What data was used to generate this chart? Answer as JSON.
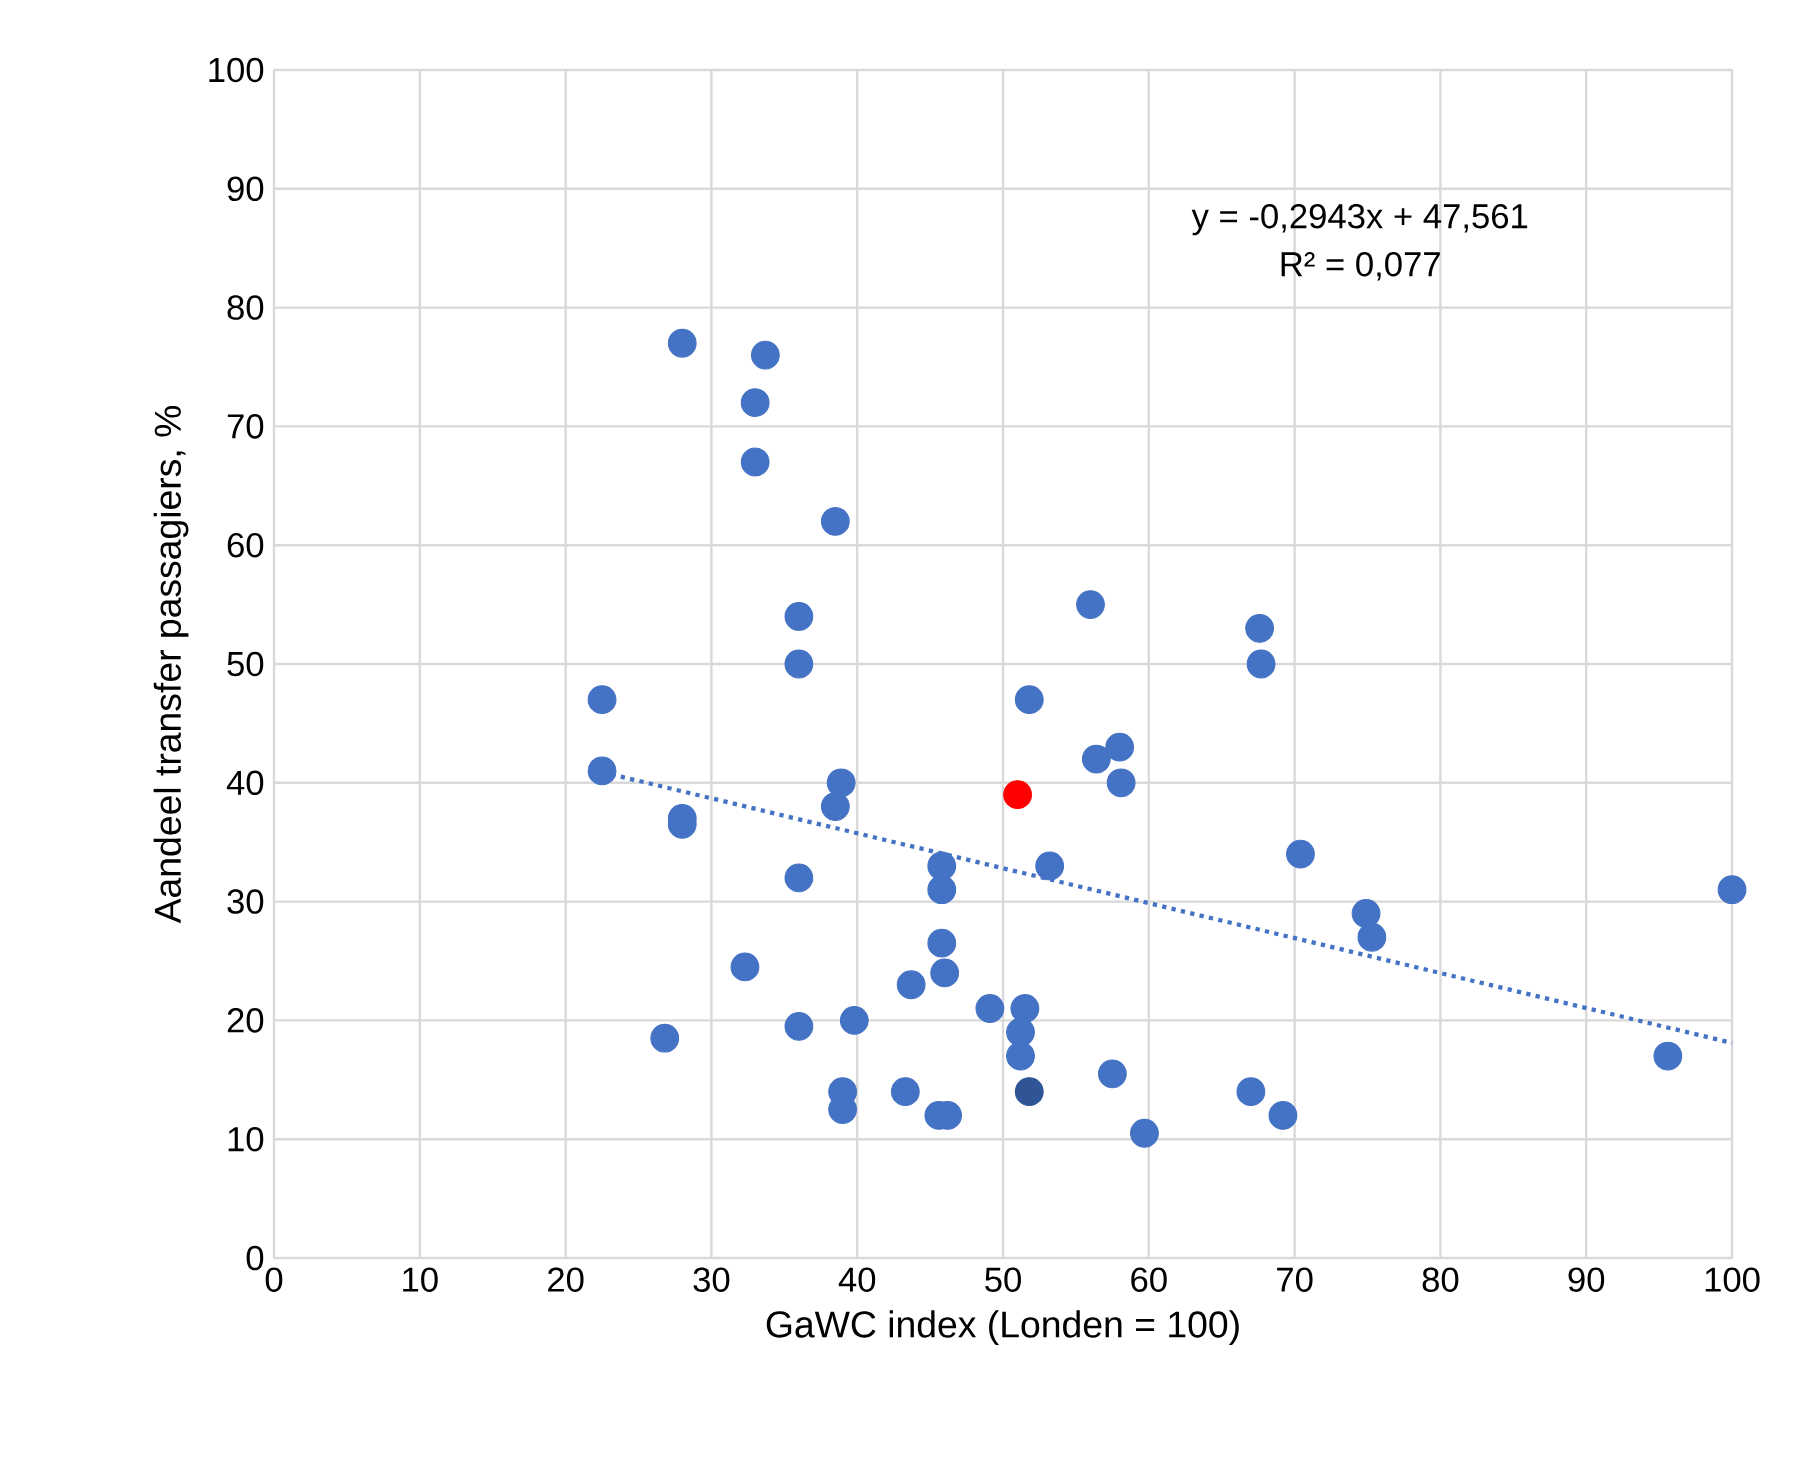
{
  "chart_data": {
    "type": "scatter",
    "xlabel": "GaWC index (Londen = 100)",
    "ylabel": "Aandeel transfer passagiers, %",
    "xlim": [
      0,
      100
    ],
    "ylim": [
      0,
      100
    ],
    "xticks": [
      0,
      10,
      20,
      30,
      40,
      50,
      60,
      70,
      80,
      90,
      100
    ],
    "yticks": [
      0,
      10,
      20,
      30,
      40,
      50,
      60,
      70,
      80,
      90,
      100
    ],
    "grid": true,
    "marker": "circle",
    "annotations": [
      "y = -0,2943x + 47,561",
      "R² = 0,077"
    ],
    "series": [
      {
        "color": "#4472c4",
        "x": [
          22.5,
          22.5,
          28,
          28,
          28,
          26.8,
          32.3,
          33,
          33,
          33.7,
          38.5,
          36,
          36,
          36,
          36,
          38.5,
          38.9,
          39,
          39,
          39.8,
          43.3,
          43.7,
          45.6,
          46.2,
          45.8,
          45.8,
          45.8,
          46,
          49.1,
          51.5,
          51.2,
          51.2,
          51.8,
          53.2,
          56,
          56.4,
          58,
          58.1,
          57.5,
          59.7,
          67,
          67.6,
          67.7,
          69.2,
          70.4,
          74.9,
          75.3,
          95.6,
          100
        ],
        "values": [
          47,
          41,
          77,
          37,
          36.5,
          18.5,
          24.5,
          72,
          67,
          76,
          62,
          54,
          50,
          32,
          19.5,
          38,
          40,
          14,
          12.5,
          20,
          14,
          23,
          12,
          12,
          33,
          31,
          26.5,
          24,
          21,
          21,
          19,
          17,
          47,
          33,
          55,
          42,
          43,
          40,
          15.5,
          10.5,
          14,
          53,
          50,
          12,
          34,
          29,
          27,
          17,
          31
        ]
      },
      {
        "color": "#ff0000",
        "x": [
          51
        ],
        "values": [
          39
        ]
      },
      {
        "color": "#2f5597",
        "x": [
          51.8
        ],
        "values": [
          14
        ]
      },
      {
        "type": "line",
        "color": "#4472c4",
        "line_style": "dotted",
        "marker": "none",
        "x": [
          22.5,
          100
        ],
        "values": [
          40.9,
          18.1
        ]
      }
    ]
  }
}
